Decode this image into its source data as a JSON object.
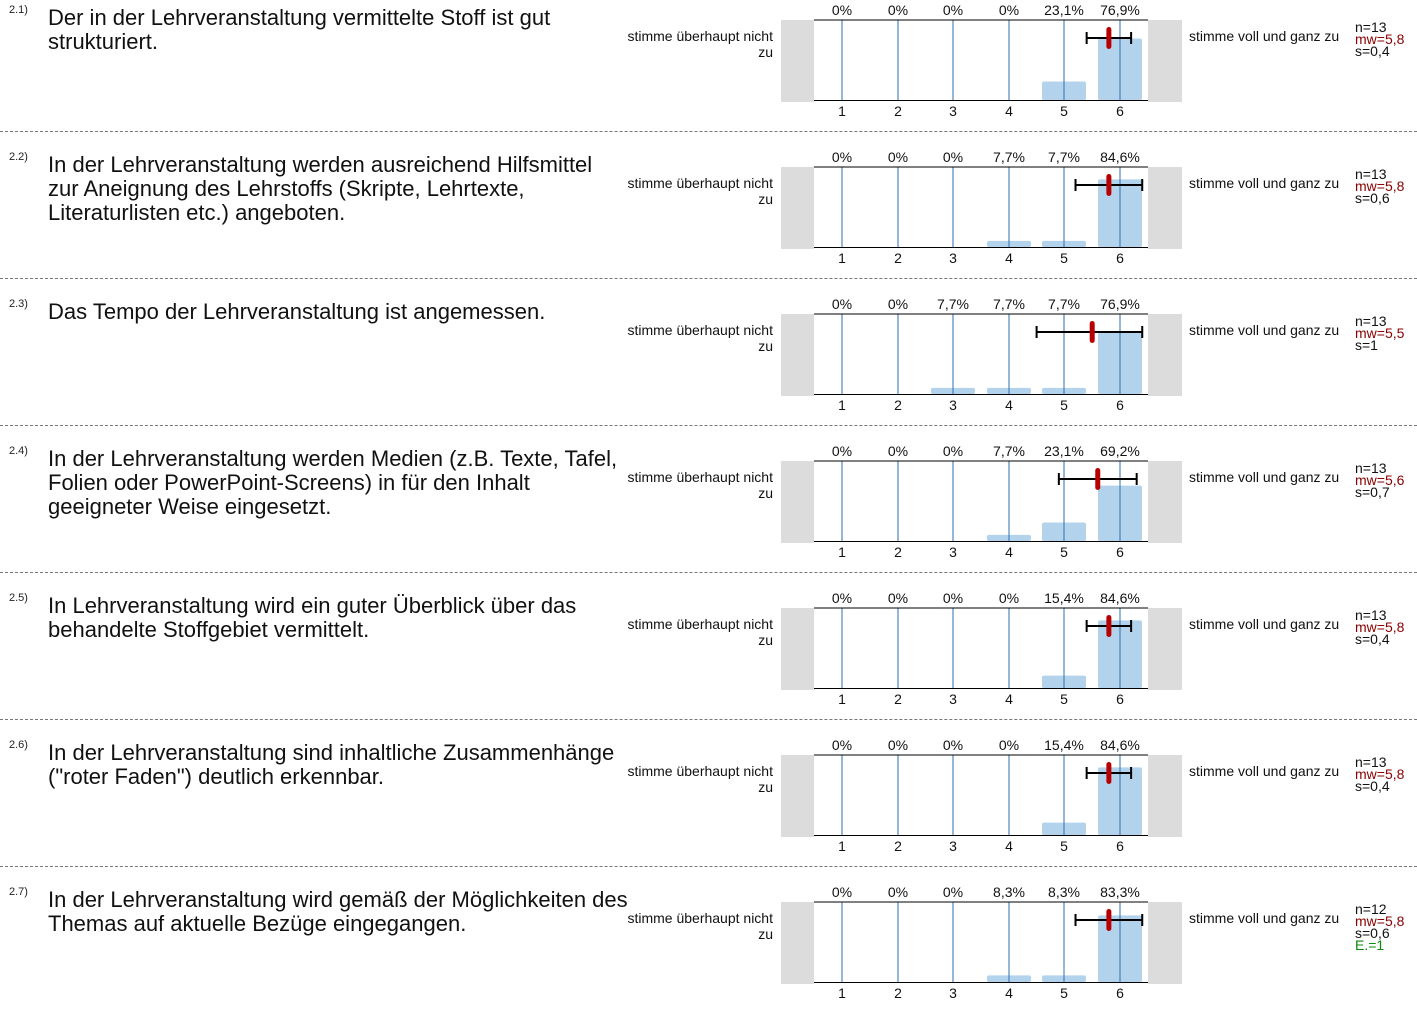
{
  "scale": {
    "categories": [
      "1",
      "2",
      "3",
      "4",
      "5",
      "6"
    ]
  },
  "colors": {
    "bar": "#b3d3ec",
    "axis_line": "#2f6fb0",
    "mean": "#b80000",
    "side_box": "#dcdcdc",
    "mw_text": "#8a0000",
    "e_text": "#0a8a0a"
  },
  "chart_data": [
    {
      "type": "bar",
      "id": "2.1)",
      "question": "Der in der Lehrveranstaltung vermittelte Stoff ist gut strukturiert.",
      "left_label": "stimme überhaupt nicht zu",
      "right_label": "stimme voll und ganz zu",
      "categories": [
        "1",
        "2",
        "3",
        "4",
        "5",
        "6"
      ],
      "values": [
        0,
        0,
        0,
        0,
        23.1,
        76.9
      ],
      "value_labels": [
        "0%",
        "0%",
        "0%",
        "0%",
        "23,1%",
        "76,9%"
      ],
      "n": "n=13",
      "mw": "mw=5,8",
      "s": "s=0,4",
      "mean": 5.8,
      "sd": 0.4
    },
    {
      "type": "bar",
      "id": "2.2)",
      "question": "In der Lehrveranstaltung werden ausreichend Hilfsmittel zur Aneignung des Lehrstoffs (Skripte, Lehrtexte, Literaturlisten etc.) angeboten.",
      "left_label": "stimme überhaupt nicht zu",
      "right_label": "stimme voll und ganz zu",
      "categories": [
        "1",
        "2",
        "3",
        "4",
        "5",
        "6"
      ],
      "values": [
        0,
        0,
        0,
        7.7,
        7.7,
        84.6
      ],
      "value_labels": [
        "0%",
        "0%",
        "0%",
        "7,7%",
        "7,7%",
        "84,6%"
      ],
      "n": "n=13",
      "mw": "mw=5,8",
      "s": "s=0,6",
      "mean": 5.8,
      "sd": 0.6
    },
    {
      "type": "bar",
      "id": "2.3)",
      "question": "Das Tempo der Lehrveranstaltung ist angemessen.",
      "left_label": "stimme überhaupt nicht zu",
      "right_label": "stimme voll und ganz zu",
      "categories": [
        "1",
        "2",
        "3",
        "4",
        "5",
        "6"
      ],
      "values": [
        0,
        0,
        7.7,
        7.7,
        7.7,
        76.9
      ],
      "value_labels": [
        "0%",
        "0%",
        "7,7%",
        "7,7%",
        "7,7%",
        "76,9%"
      ],
      "n": "n=13",
      "mw": "mw=5,5",
      "s": "s=1",
      "mean": 5.5,
      "sd": 1.0
    },
    {
      "type": "bar",
      "id": "2.4)",
      "question": "In der Lehrveranstaltung werden Medien (z.B. Texte, Tafel, Folien oder PowerPoint-Screens) in für den Inhalt geeigneter Weise eingesetzt.",
      "left_label": "stimme überhaupt nicht zu",
      "right_label": "stimme voll und ganz zu",
      "categories": [
        "1",
        "2",
        "3",
        "4",
        "5",
        "6"
      ],
      "values": [
        0,
        0,
        0,
        7.7,
        23.1,
        69.2
      ],
      "value_labels": [
        "0%",
        "0%",
        "0%",
        "7,7%",
        "23,1%",
        "69,2%"
      ],
      "n": "n=13",
      "mw": "mw=5,6",
      "s": "s=0,7",
      "mean": 5.6,
      "sd": 0.7
    },
    {
      "type": "bar",
      "id": "2.5)",
      "question": "In Lehrveranstaltung wird ein guter Überblick über das behandelte Stoffgebiet vermittelt.",
      "left_label": "stimme überhaupt nicht zu",
      "right_label": "stimme voll und ganz zu",
      "categories": [
        "1",
        "2",
        "3",
        "4",
        "5",
        "6"
      ],
      "values": [
        0,
        0,
        0,
        0,
        15.4,
        84.6
      ],
      "value_labels": [
        "0%",
        "0%",
        "0%",
        "0%",
        "15,4%",
        "84,6%"
      ],
      "n": "n=13",
      "mw": "mw=5,8",
      "s": "s=0,4",
      "mean": 5.8,
      "sd": 0.4
    },
    {
      "type": "bar",
      "id": "2.6)",
      "question": "In der Lehrveranstaltung sind inhaltliche Zusammenhänge (\"roter Faden\") deutlich erkennbar.",
      "left_label": "stimme überhaupt nicht zu",
      "right_label": "stimme voll und ganz zu",
      "categories": [
        "1",
        "2",
        "3",
        "4",
        "5",
        "6"
      ],
      "values": [
        0,
        0,
        0,
        0,
        15.4,
        84.6
      ],
      "value_labels": [
        "0%",
        "0%",
        "0%",
        "0%",
        "15,4%",
        "84,6%"
      ],
      "n": "n=13",
      "mw": "mw=5,8",
      "s": "s=0,4",
      "mean": 5.8,
      "sd": 0.4
    },
    {
      "type": "bar",
      "id": "2.7)",
      "question": "In der Lehrveranstaltung wird gemäß der Möglichkeiten des Themas auf aktuelle Bezüge eingegangen.",
      "left_label": "stimme überhaupt nicht zu",
      "right_label": "stimme voll und ganz zu",
      "categories": [
        "1",
        "2",
        "3",
        "4",
        "5",
        "6"
      ],
      "values": [
        0,
        0,
        0,
        8.3,
        8.3,
        83.3
      ],
      "value_labels": [
        "0%",
        "0%",
        "0%",
        "8,3%",
        "8,3%",
        "83,3%"
      ],
      "n": "n=12",
      "mw": "mw=5,8",
      "s": "s=0,6",
      "e": "E.=1",
      "mean": 5.8,
      "sd": 0.6
    }
  ]
}
